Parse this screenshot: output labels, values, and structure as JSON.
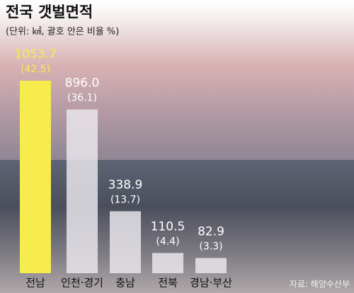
{
  "chart_data": {
    "type": "bar",
    "title": "전국 갯벌면적",
    "subtitle": "(단위: ㎢, 괄호 안은 비율 %)",
    "categories": [
      "전남",
      "인천·경기",
      "충남",
      "전북",
      "경남·부산"
    ],
    "values": [
      1053.7,
      896.0,
      338.9,
      110.5,
      82.9
    ],
    "value_labels": [
      "1053.7",
      "896.0",
      "338.9",
      "110.5",
      "82.9"
    ],
    "shares": [
      42.5,
      36.1,
      13.7,
      4.4,
      3.3
    ],
    "share_labels": [
      "(42.5)",
      "(36.1)",
      "(13.7)",
      "(4.4)",
      "(3.3)"
    ],
    "colors": [
      "#f6ec4e",
      "#ece9ee",
      "#ece9ee",
      "#ece9ee",
      "#ece9ee"
    ],
    "source": "자료: 해양수산부"
  }
}
